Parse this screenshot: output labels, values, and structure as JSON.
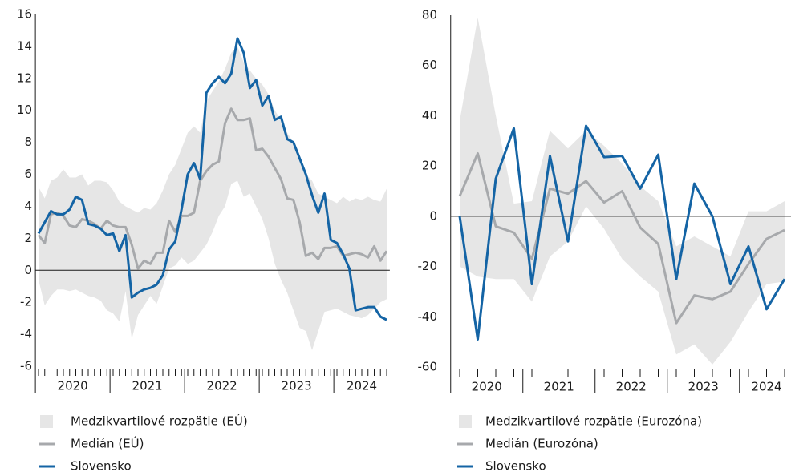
{
  "chart_data": [
    {
      "type": "line",
      "categories": [
        "2020",
        "2020",
        "2020",
        "2020",
        "2020",
        "2020",
        "2020",
        "2020",
        "2020",
        "2020",
        "2020",
        "2020",
        "2021",
        "2021",
        "2021",
        "2021",
        "2021",
        "2021",
        "2021",
        "2021",
        "2021",
        "2021",
        "2021",
        "2021",
        "2022",
        "2022",
        "2022",
        "2022",
        "2022",
        "2022",
        "2022",
        "2022",
        "2022",
        "2022",
        "2022",
        "2022",
        "2023",
        "2023",
        "2023",
        "2023",
        "2023",
        "2023",
        "2023",
        "2023",
        "2023",
        "2023",
        "2023",
        "2023",
        "2024",
        "2024",
        "2024",
        "2024",
        "2024",
        "2024",
        "2024",
        "2024",
        "2024"
      ],
      "ylim": [
        -6,
        16
      ],
      "yticks": [
        -6,
        -4,
        -2,
        0,
        2,
        4,
        6,
        8,
        10,
        12,
        14,
        16
      ],
      "series": [
        {
          "name": "Medzikvartilové rozpätie (EÚ)",
          "color": "#e6e6e6",
          "upper": [
            5.2,
            4.5,
            5.6,
            5.8,
            6.3,
            5.8,
            5.8,
            6.0,
            5.3,
            5.6,
            5.6,
            5.5,
            5.0,
            4.3,
            4.0,
            3.8,
            3.6,
            3.9,
            3.8,
            4.2,
            5.0,
            6.0,
            6.6,
            7.6,
            8.6,
            9.0,
            8.6,
            10.6,
            11.2,
            11.8,
            12.6,
            13.6,
            14.0,
            13.0,
            12.5,
            12.0,
            11.6,
            11.0,
            10.0,
            9.4,
            8.6,
            8.0,
            7.2,
            6.0,
            5.6,
            4.8,
            4.6,
            4.4,
            4.2,
            4.6,
            4.3,
            4.5,
            4.4,
            4.6,
            4.4,
            4.3,
            5.1
          ],
          "lower": [
            -0.6,
            -2.2,
            -1.6,
            -1.2,
            -1.2,
            -1.3,
            -1.2,
            -1.4,
            -1.6,
            -1.7,
            -1.9,
            -2.5,
            -2.7,
            -3.2,
            -1.3,
            -4.3,
            -2.8,
            -2.2,
            -1.6,
            -2.1,
            -1.0,
            0.1,
            0.3,
            0.8,
            0.4,
            0.6,
            1.1,
            1.6,
            2.4,
            3.4,
            4.0,
            5.4,
            5.6,
            4.6,
            4.8,
            4.0,
            3.2,
            2.0,
            0.4,
            -0.6,
            -1.4,
            -2.5,
            -3.6,
            -3.8,
            -5.0,
            -3.8,
            -2.6,
            -2.5,
            -2.4,
            -2.6,
            -2.8,
            -2.9,
            -3.0,
            -2.8,
            -2.4,
            -2.0,
            -1.8
          ]
        },
        {
          "name": "Medián (EÚ)",
          "color": "#a7a9ac",
          "values": [
            2.2,
            1.7,
            3.5,
            3.6,
            3.4,
            2.8,
            2.7,
            3.2,
            3.1,
            2.9,
            2.6,
            3.1,
            2.8,
            2.7,
            2.7,
            1.6,
            0.1,
            0.6,
            0.4,
            1.1,
            1.1,
            3.1,
            2.4,
            3.4,
            3.4,
            3.6,
            5.6,
            6.2,
            6.6,
            6.8,
            9.2,
            10.1,
            9.4,
            9.4,
            9.5,
            7.5,
            7.6,
            7.1,
            6.4,
            5.7,
            4.5,
            4.4,
            3.0,
            0.9,
            1.1,
            0.7,
            1.4,
            1.4,
            1.5,
            0.9,
            1.0,
            1.1,
            1.0,
            0.8,
            1.5,
            0.6,
            1.2
          ]
        },
        {
          "name": "Slovensko",
          "color": "#1464a5",
          "values": [
            2.3,
            3.0,
            3.7,
            3.5,
            3.5,
            3.8,
            4.6,
            4.4,
            2.9,
            2.8,
            2.6,
            2.2,
            2.3,
            1.2,
            2.2,
            -1.7,
            -1.4,
            -1.2,
            -1.1,
            -0.9,
            -0.3,
            1.3,
            1.8,
            3.8,
            6.0,
            6.7,
            5.7,
            11.1,
            11.7,
            12.1,
            11.7,
            12.3,
            14.5,
            13.6,
            11.4,
            11.9,
            10.3,
            10.9,
            9.4,
            9.6,
            8.2,
            8.0,
            7.0,
            6.0,
            4.7,
            3.6,
            4.8,
            1.9,
            1.7,
            1.0,
            0.1,
            -2.5,
            -2.4,
            -2.3,
            -2.3,
            -2.9,
            -3.1
          ]
        }
      ]
    },
    {
      "type": "line",
      "categories": [
        "2020",
        "2020",
        "2020",
        "2020",
        "2021",
        "2021",
        "2021",
        "2021",
        "2022",
        "2022",
        "2022",
        "2022",
        "2023",
        "2023",
        "2023",
        "2023",
        "2024",
        "2024",
        "2024"
      ],
      "ylim": [
        -60,
        80
      ],
      "yticks": [
        -60,
        -40,
        -20,
        0,
        20,
        40,
        60,
        80
      ],
      "series": [
        {
          "name": "Medzikvartilové rozpätie (Eurozóna)",
          "color": "#e6e6e6",
          "upper": [
            38,
            79,
            40,
            5,
            6,
            34,
            27,
            34,
            28,
            21,
            12,
            6,
            -12,
            -8,
            -12,
            -16,
            2,
            2,
            6
          ],
          "lower": [
            -20,
            -24,
            -25,
            -25,
            -34,
            -16,
            -10,
            4,
            -5,
            -17,
            -24,
            -30,
            -55,
            -51,
            -59,
            -50,
            -38,
            -27,
            -26
          ]
        },
        {
          "name": "Medián (Eurozóna)",
          "color": "#a7a9ac",
          "values": [
            8,
            25,
            -4,
            -6.5,
            -17,
            11,
            9,
            14,
            5.5,
            10,
            -4.5,
            -11,
            -42.5,
            -31.5,
            -33,
            -30,
            -19,
            -9,
            -5.5
          ]
        },
        {
          "name": "Slovensko",
          "color": "#1464a5",
          "values": [
            0,
            -49,
            15,
            35,
            -27,
            24,
            -10,
            36,
            23.5,
            24,
            11,
            24.5,
            -25,
            13,
            0,
            -27,
            -12,
            -37,
            -25
          ]
        }
      ]
    }
  ]
}
